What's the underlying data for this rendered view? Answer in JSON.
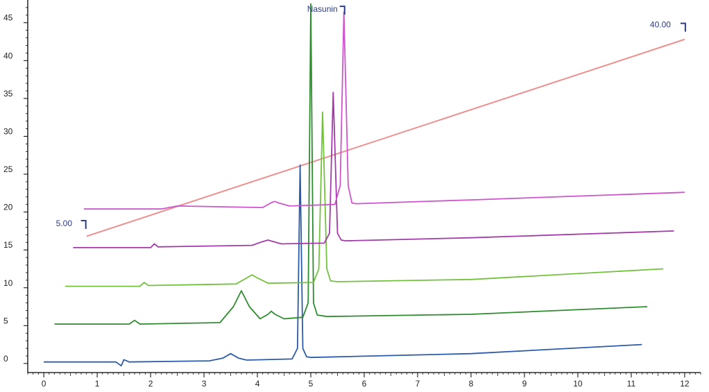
{
  "chart_data": {
    "type": "line",
    "title": "",
    "xlabel": "",
    "ylabel": "",
    "xlim": [
      -0.3,
      12.3
    ],
    "ylim": [
      -1.2,
      48
    ],
    "x_ticks": [
      0,
      1,
      2,
      3,
      4,
      5,
      6,
      7,
      8,
      9,
      10,
      11,
      12
    ],
    "x_tick_labels": [
      "0",
      "1",
      "2",
      "3",
      "4",
      "5",
      "6",
      "7",
      "8",
      "9",
      "10",
      "11",
      "12"
    ],
    "y_ticks": [
      0,
      5,
      10,
      15,
      20,
      25,
      30,
      35,
      40,
      45
    ],
    "y_tick_labels": [
      "0",
      "5",
      "10",
      "15",
      "20",
      "25",
      "30",
      "35",
      "40",
      "45"
    ],
    "grid": false,
    "colors": {
      "axis": "#000000",
      "gradient": "#ee8f8f",
      "annotation": "#2b3a8c",
      "trace_blue": "#2a5aa8",
      "trace_darkgreen": "#2e8b2e",
      "trace_lightgreen": "#72c23e",
      "trace_darkmagenta": "#a23aa8",
      "trace_magenta": "#cc55cc"
    },
    "series": [
      {
        "color_key": "trace_blue",
        "baseline": 0.2,
        "x": [
          0,
          1.35,
          1.45,
          1.5,
          1.6,
          3.1,
          3.35,
          3.5,
          3.65,
          3.8,
          4.65,
          4.75,
          4.8,
          4.85,
          4.92,
          5.0,
          8.0,
          11.2
        ],
        "y": [
          0.2,
          0.2,
          -0.3,
          0.5,
          0.2,
          0.35,
          0.7,
          1.3,
          0.7,
          0.45,
          0.6,
          2.0,
          26.2,
          2.0,
          0.9,
          0.8,
          1.3,
          2.5
        ]
      },
      {
        "color_key": "trace_darkgreen",
        "baseline": 5.2,
        "x": [
          0.2,
          1.6,
          1.7,
          1.8,
          3.3,
          3.55,
          3.7,
          3.85,
          4.05,
          4.2,
          4.26,
          4.33,
          4.5,
          4.85,
          4.95,
          5.0,
          5.05,
          5.12,
          5.3,
          8.0,
          11.3
        ],
        "y": [
          5.2,
          5.2,
          5.7,
          5.2,
          5.4,
          7.5,
          9.6,
          7.5,
          5.9,
          6.5,
          6.9,
          6.5,
          5.9,
          6.1,
          8.0,
          47.5,
          8.0,
          6.4,
          6.2,
          6.5,
          7.5
        ]
      },
      {
        "color_key": "trace_lightgreen",
        "baseline": 10.2,
        "x": [
          0.4,
          1.8,
          1.88,
          1.96,
          3.6,
          3.8,
          3.9,
          4.0,
          4.2,
          5.05,
          5.15,
          5.22,
          5.3,
          5.37,
          5.5,
          8.0,
          11.6
        ],
        "y": [
          10.2,
          10.2,
          10.7,
          10.3,
          10.5,
          11.3,
          11.7,
          11.3,
          10.6,
          10.7,
          12.5,
          33.2,
          12.5,
          10.9,
          10.8,
          11.1,
          12.5
        ]
      },
      {
        "color_key": "trace_darkmagenta",
        "baseline": 15.3,
        "x": [
          0.55,
          2.0,
          2.07,
          2.14,
          3.9,
          4.1,
          4.2,
          4.3,
          4.45,
          5.25,
          5.35,
          5.42,
          5.5,
          5.57,
          5.65,
          8.0,
          11.8
        ],
        "y": [
          15.3,
          15.3,
          15.8,
          15.4,
          15.6,
          16.1,
          16.3,
          16.1,
          15.8,
          15.9,
          17.2,
          35.8,
          17.2,
          16.3,
          16.2,
          16.6,
          17.5
        ]
      },
      {
        "color_key": "trace_magenta",
        "baseline": 20.4,
        "x": [
          0.75,
          2.2,
          2.5,
          4.1,
          4.25,
          4.32,
          4.4,
          4.6,
          5.45,
          5.55,
          5.62,
          5.7,
          5.77,
          5.85,
          8.0,
          12.0
        ],
        "y": [
          20.4,
          20.4,
          20.8,
          20.6,
          21.2,
          21.4,
          21.2,
          20.8,
          21.0,
          23.5,
          46.4,
          23.5,
          21.2,
          21.1,
          21.6,
          22.6
        ]
      }
    ],
    "gradient_line": {
      "x": [
        0.8,
        12.0
      ],
      "y": [
        16.8,
        42.8
      ]
    },
    "annotations": [
      {
        "text": "5.00",
        "x": 0.8,
        "y": 18.5
      },
      {
        "text": "40.00",
        "x": 12.0,
        "y": 44.0
      },
      {
        "text": "Nasunin",
        "x": 5.62,
        "y": 46.8
      }
    ]
  }
}
